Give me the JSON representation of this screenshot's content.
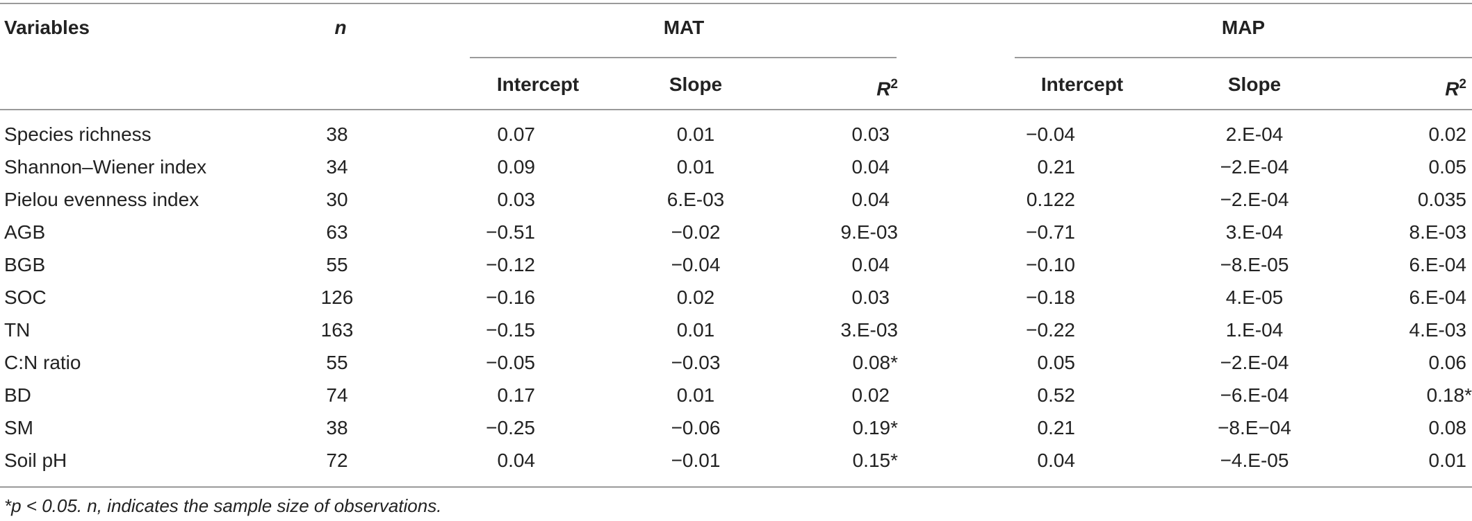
{
  "table": {
    "header": {
      "variables": "Variables",
      "n": "n",
      "groups": [
        {
          "label": "MAT",
          "cols": [
            "Intercept",
            "Slope",
            "R2"
          ]
        },
        {
          "label": "MAP",
          "cols": [
            "Intercept",
            "Slope",
            "R2"
          ]
        }
      ],
      "r_base": "R",
      "r_sup": "2"
    },
    "rows": [
      {
        "variable": "Species richness",
        "n": "38",
        "mat": [
          "0.07",
          "0.01",
          "0.03"
        ],
        "map": [
          "−0.04",
          "2.E-04",
          "0.02"
        ]
      },
      {
        "variable": "Shannon–Wiener index",
        "n": "34",
        "mat": [
          "0.09",
          "0.01",
          "0.04"
        ],
        "map": [
          "0.21",
          "−2.E-04",
          "0.05"
        ]
      },
      {
        "variable": "Pielou evenness index",
        "n": "30",
        "mat": [
          "0.03",
          "6.E-03",
          "0.04"
        ],
        "map": [
          "0.122",
          "−2.E-04",
          "0.035"
        ]
      },
      {
        "variable": "AGB",
        "n": "63",
        "mat": [
          "−0.51",
          "−0.02",
          "9.E-03"
        ],
        "map": [
          "−0.71",
          "3.E-04",
          "8.E-03"
        ]
      },
      {
        "variable": "BGB",
        "n": "55",
        "mat": [
          "−0.12",
          "−0.04",
          "0.04"
        ],
        "map": [
          "−0.10",
          "−8.E-05",
          "6.E-04"
        ]
      },
      {
        "variable": "SOC",
        "n": "126",
        "mat": [
          "−0.16",
          "0.02",
          "0.03"
        ],
        "map": [
          "−0.18",
          "4.E-05",
          "6.E-04"
        ]
      },
      {
        "variable": "TN",
        "n": "163",
        "mat": [
          "−0.15",
          "0.01",
          "3.E-03"
        ],
        "map": [
          "−0.22",
          "1.E-04",
          "4.E-03"
        ]
      },
      {
        "variable": "C:N ratio",
        "n": "55",
        "mat": [
          "−0.05",
          "−0.03",
          "0.08*"
        ],
        "map": [
          "0.05",
          "−2.E-04",
          "0.06"
        ]
      },
      {
        "variable": "BD",
        "n": "74",
        "mat": [
          "0.17",
          "0.01",
          "0.02"
        ],
        "map": [
          "0.52",
          "−6.E-04",
          "0.18*"
        ]
      },
      {
        "variable": "SM",
        "n": "38",
        "mat": [
          "−0.25",
          "−0.06",
          "0.19*"
        ],
        "map": [
          "0.21",
          "−8.E−04",
          "0.08"
        ]
      },
      {
        "variable": "Soil pH",
        "n": "72",
        "mat": [
          "0.04",
          "−0.01",
          "0.15*"
        ],
        "map": [
          "0.04",
          "−4.E-05",
          "0.01"
        ]
      }
    ],
    "footnote": "*p < 0.05. n, indicates the sample size of observations."
  }
}
